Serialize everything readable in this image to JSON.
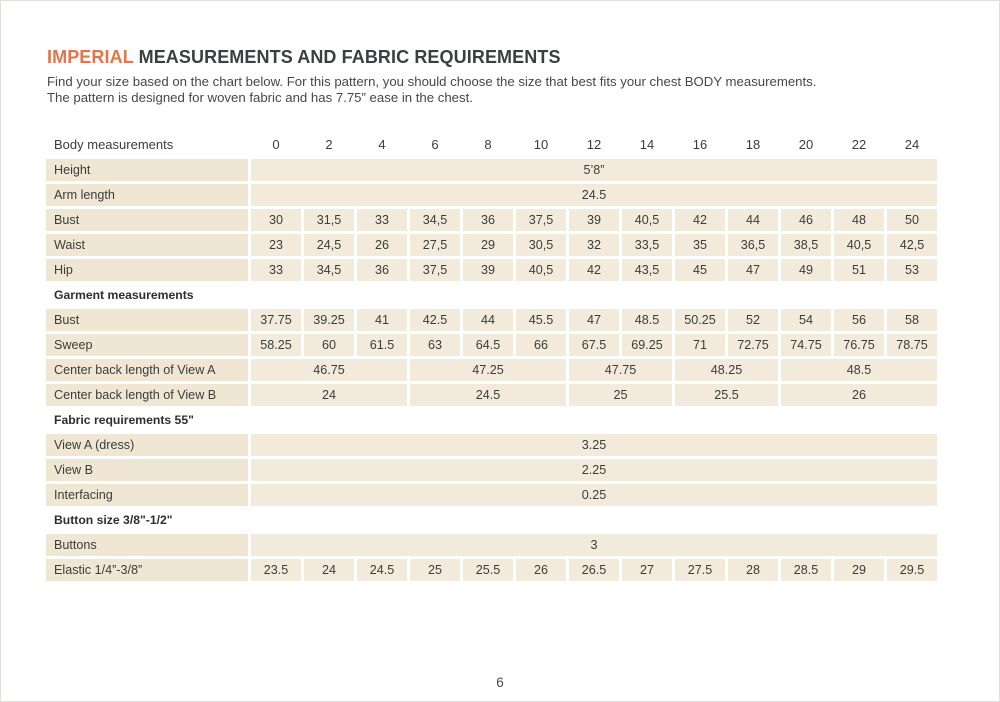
{
  "page": {
    "title": {
      "highlight": "IMPERIAL",
      "rest": "MEASUREMENTS AND FABRIC REQUIREMENTS"
    },
    "intro": [
      "Find your size based on the chart below. For this pattern, you should choose the size that best fits your chest BODY measurements.",
      "The pattern is designed for woven fabric and has 7.75” ease in the chest."
    ],
    "page_number": "6"
  },
  "colors": {
    "accent_orange": "#E0764A",
    "heading_dark": "#3A3F41",
    "body_text": "#474747",
    "label_cell_beige": "#EFE7D3",
    "data_cell_beige": "#F2EBDB"
  },
  "size_table": {
    "corner_label": "Body measurements",
    "sizes": [
      "0",
      "2",
      "4",
      "6",
      "8",
      "10",
      "12",
      "14",
      "16",
      "18",
      "20",
      "22",
      "24"
    ],
    "rows": [
      {
        "kind": "full",
        "label": "Height",
        "value": "5’8”"
      },
      {
        "kind": "full",
        "label": "Arm length",
        "value": "24.5"
      },
      {
        "kind": "cells",
        "label": "Bust",
        "values": [
          "30",
          "31,5",
          "33",
          "34,5",
          "36",
          "37,5",
          "39",
          "40,5",
          "42",
          "44",
          "46",
          "48",
          "50"
        ]
      },
      {
        "kind": "cells",
        "label": "Waist",
        "values": [
          "23",
          "24,5",
          "26",
          "27,5",
          "29",
          "30,5",
          "32",
          "33,5",
          "35",
          "36,5",
          "38,5",
          "40,5",
          "42,5"
        ]
      },
      {
        "kind": "cells",
        "label": "Hip",
        "values": [
          "33",
          "34,5",
          "36",
          "37,5",
          "39",
          "40,5",
          "42",
          "43,5",
          "45",
          "47",
          "49",
          "51",
          "53"
        ]
      },
      {
        "kind": "section",
        "label": "Garment measurements"
      },
      {
        "kind": "cells",
        "label": "Bust",
        "values": [
          "37.75",
          "39.25",
          "41",
          "42.5",
          "44",
          "45.5",
          "47",
          "48.5",
          "50.25",
          "52",
          "54",
          "56",
          "58"
        ]
      },
      {
        "kind": "cells",
        "label": "Sweep",
        "values": [
          "58.25",
          "60",
          "61.5",
          "63",
          "64.5",
          "66",
          "67.5",
          "69.25",
          "71",
          "72.75",
          "74.75",
          "76.75",
          "78.75"
        ]
      },
      {
        "kind": "groups",
        "label": "Center back length of View A",
        "groups": [
          {
            "span": 3,
            "value": "46.75"
          },
          {
            "span": 3,
            "value": "47.25"
          },
          {
            "span": 2,
            "value": "47.75"
          },
          {
            "span": 2,
            "value": "48.25"
          },
          {
            "span": 3,
            "value": "48.5"
          }
        ]
      },
      {
        "kind": "groups",
        "label": "Center back length of View B",
        "groups": [
          {
            "span": 3,
            "value": "24"
          },
          {
            "span": 3,
            "value": "24.5"
          },
          {
            "span": 2,
            "value": "25"
          },
          {
            "span": 2,
            "value": "25.5"
          },
          {
            "span": 3,
            "value": "26"
          }
        ]
      },
      {
        "kind": "section",
        "label": "Fabric requirements 55\""
      },
      {
        "kind": "full",
        "label": "View A (dress)",
        "value": "3.25"
      },
      {
        "kind": "full",
        "label": "View B",
        "value": "2.25"
      },
      {
        "kind": "full",
        "label": "Interfacing",
        "value": "0.25"
      },
      {
        "kind": "section",
        "label": "Button size 3/8\"-1/2\""
      },
      {
        "kind": "full",
        "label": "Buttons",
        "value": "3"
      },
      {
        "kind": "cells",
        "label": "Elastic 1/4”-3/8”",
        "values": [
          "23.5",
          "24",
          "24.5",
          "25",
          "25.5",
          "26",
          "26.5",
          "27",
          "27.5",
          "28",
          "28.5",
          "29",
          "29.5"
        ]
      }
    ]
  }
}
